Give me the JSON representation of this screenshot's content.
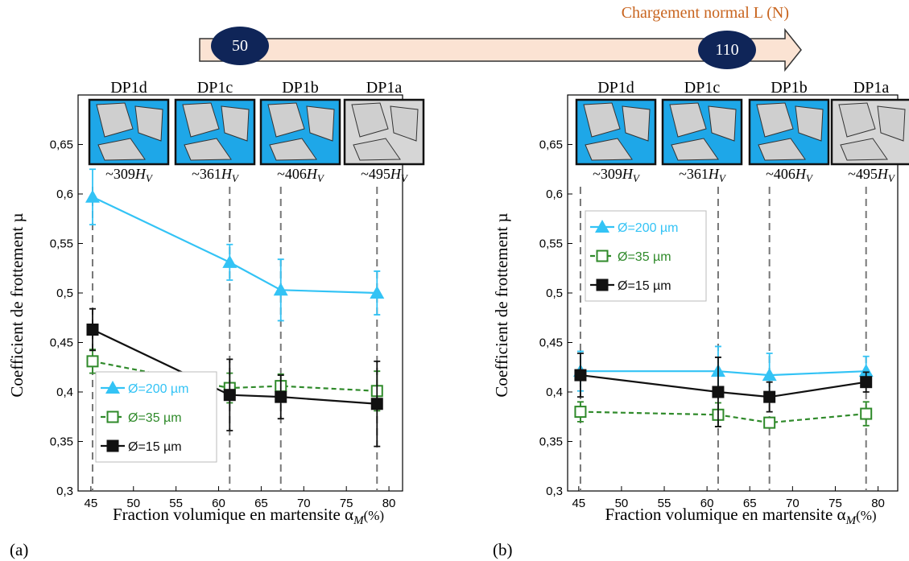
{
  "header": {
    "title": "Chargement normal L (N)",
    "start": 50,
    "end": 110
  },
  "chart_data": [
    {
      "type": "line",
      "panel_label": "(a)",
      "y_label": "Coefficient de frottement µ",
      "x_label": "Fraction volumique en martensite α",
      "x_label_sub": "M",
      "x_label_unit": "(%)",
      "x": [
        45.2,
        61.3,
        67.3,
        78.6
      ],
      "structures": [
        "DP1d",
        "DP1c",
        "DP1b",
        "DP1a"
      ],
      "hardness": [
        "~309",
        "~361",
        "~406",
        "~495"
      ],
      "hardness_unit": "H",
      "hardness_unit_sub": "V",
      "xlim": [
        43.5,
        81.6
      ],
      "xticks": [
        45,
        50,
        55,
        60,
        65,
        70,
        75,
        80
      ],
      "ylim": [
        0.3,
        0.7
      ],
      "yticks": [
        {
          "value": 0.3,
          "label": "0,3"
        },
        {
          "value": 0.35,
          "label": "0,35"
        },
        {
          "value": 0.4,
          "label": "0,4"
        },
        {
          "value": 0.45,
          "label": "0,45"
        },
        {
          "value": 0.5,
          "label": "0,5"
        },
        {
          "value": 0.55,
          "label": "0,55"
        },
        {
          "value": 0.6,
          "label": "0,6"
        },
        {
          "value": 0.65,
          "label": "0,65"
        }
      ],
      "legend": "lower left",
      "series": [
        {
          "name": "Ø=200 µm",
          "color": "#33c3f5",
          "marker": "triangle",
          "dashed": false,
          "values": [
            0.597,
            0.531,
            0.503,
            0.5
          ],
          "errors": [
            0.028,
            0.018,
            0.031,
            0.022
          ]
        },
        {
          "name": "Ø=35 µm",
          "color": "#2f8a2a",
          "marker": "square-open",
          "dashed": true,
          "values": [
            0.431,
            0.404,
            0.406,
            0.401
          ],
          "errors": [
            0.012,
            0.015,
            0.012,
            0.02
          ]
        },
        {
          "name": "Ø=15 µm",
          "color": "#111111",
          "marker": "square",
          "dashed": false,
          "values": [
            0.463,
            0.397,
            0.395,
            0.388
          ],
          "errors": [
            0.021,
            0.036,
            0.022,
            0.043
          ]
        }
      ]
    },
    {
      "type": "line",
      "panel_label": "(b)",
      "y_label": "Coefficient de frottement µ",
      "x_label": "Fraction volumique en martensite α",
      "x_label_sub": "M",
      "x_label_unit": "(%)",
      "x": [
        45.2,
        61.3,
        67.3,
        78.6
      ],
      "structures": [
        "DP1d",
        "DP1c",
        "DP1b",
        "DP1a"
      ],
      "hardness": [
        "~309",
        "~361",
        "~406",
        "~495"
      ],
      "hardness_unit": "H",
      "hardness_unit_sub": "V",
      "xlim": [
        43.7,
        82.3
      ],
      "xticks": [
        45,
        50,
        55,
        60,
        65,
        70,
        75,
        80
      ],
      "ylim": [
        0.3,
        0.7
      ],
      "yticks": [
        {
          "value": 0.3,
          "label": "0,3"
        },
        {
          "value": 0.35,
          "label": "0,35"
        },
        {
          "value": 0.4,
          "label": "0,4"
        },
        {
          "value": 0.45,
          "label": "0,45"
        },
        {
          "value": 0.5,
          "label": "0,5"
        },
        {
          "value": 0.55,
          "label": "0,55"
        },
        {
          "value": 0.6,
          "label": "0,6"
        },
        {
          "value": 0.65,
          "label": "0,65"
        }
      ],
      "legend": "upper left",
      "series": [
        {
          "name": "Ø=200 µm",
          "color": "#33c3f5",
          "marker": "triangle",
          "dashed": false,
          "values": [
            0.421,
            0.421,
            0.417,
            0.421
          ],
          "errors": [
            0.02,
            0.025,
            0.022,
            0.015
          ]
        },
        {
          "name": "Ø=35 µm",
          "color": "#2f8a2a",
          "marker": "square-open",
          "dashed": true,
          "values": [
            0.38,
            0.377,
            0.369,
            0.378
          ],
          "errors": [
            0.01,
            0.012,
            0.005,
            0.012
          ]
        },
        {
          "name": "Ø=15 µm",
          "color": "#111111",
          "marker": "square",
          "dashed": false,
          "values": [
            0.417,
            0.4,
            0.395,
            0.41
          ],
          "errors": [
            0.022,
            0.035,
            0.015,
            0.01
          ]
        }
      ]
    }
  ]
}
